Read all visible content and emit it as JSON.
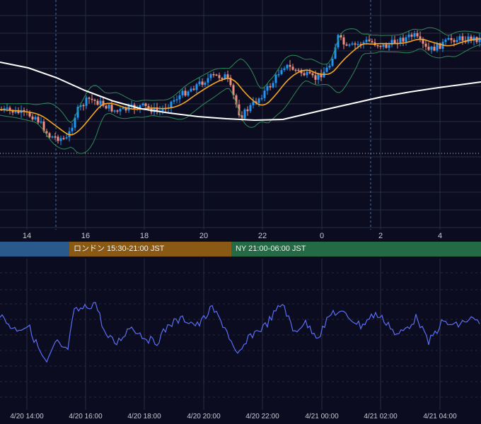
{
  "chart_data": [
    {
      "type": "candlestick",
      "x_tick_labels": [
        "14",
        "16",
        "18",
        "20",
        "22",
        "0",
        "2",
        "4"
      ],
      "overlays": [
        "moving-average-orange",
        "moving-average-white",
        "bollinger-bands-green"
      ],
      "colors": {
        "up": "#2196f3",
        "down": "#ef8f7f",
        "ma_short": "#f5a623",
        "ma_long": "#ffffff",
        "bands": "#2e8b57",
        "background": "#0b0c1f",
        "grid": "#2a2c40"
      },
      "grid": true
    },
    {
      "type": "line",
      "x_tick_labels": [
        "4/20 14:00",
        "4/20 16:00",
        "4/20 18:00",
        "4/20 20:00",
        "4/20 22:00",
        "4/21 00:00",
        "4/21 02:00",
        "4/21 04:00"
      ],
      "colors": {
        "line": "#5b6ef5",
        "grid": "#2a2c40"
      },
      "grid": true
    }
  ],
  "sessions": [
    {
      "label": "",
      "color": "#2a5a8c"
    },
    {
      "label": "ロンドン 15:30-21:00 JST",
      "color": "#8a5a14"
    },
    {
      "label": "NY 21:00-06:00 JST",
      "color": "#236a45"
    }
  ]
}
